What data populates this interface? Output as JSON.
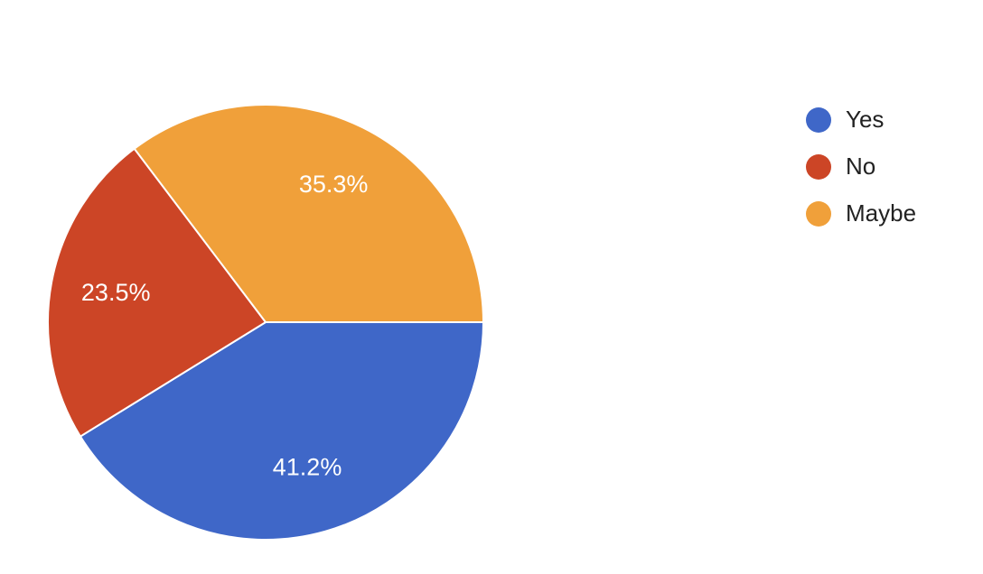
{
  "chart_data": {
    "type": "pie",
    "categories": [
      "Yes",
      "No",
      "Maybe"
    ],
    "values": [
      41.2,
      23.5,
      35.3
    ],
    "value_labels": [
      "41.2%",
      "23.5%",
      "35.3%"
    ],
    "colors": [
      "#3f67c8",
      "#cc4526",
      "#f0a03a"
    ],
    "legend": "right"
  }
}
